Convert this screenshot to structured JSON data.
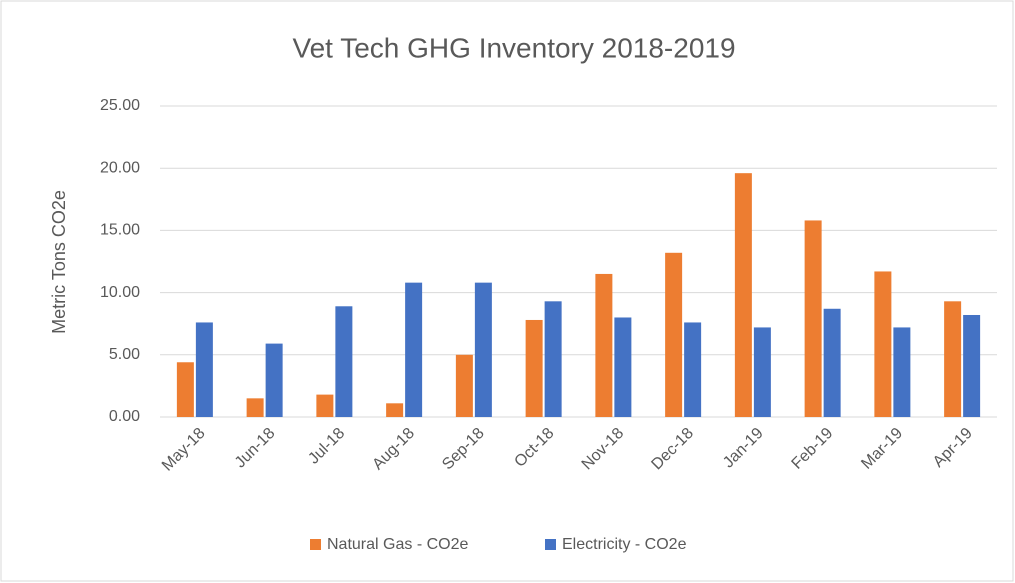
{
  "chart_data": {
    "type": "bar",
    "title": "Vet Tech GHG Inventory 2018-2019",
    "y_label": "Metric Tons CO2e",
    "categories": [
      "May-18",
      "Jun-18",
      "Jul-18",
      "Aug-18",
      "Sep-18",
      "Oct-18",
      "Nov-18",
      "Dec-18",
      "Jan-19",
      "Feb-19",
      "Mar-19",
      "Apr-19"
    ],
    "series": [
      {
        "name": "Natural Gas - CO2e",
        "color": "#ed7d31",
        "values": [
          4.4,
          1.5,
          1.8,
          1.1,
          5.0,
          7.8,
          11.5,
          13.2,
          19.6,
          15.8,
          11.7,
          9.3
        ]
      },
      {
        "name": "Electricity - CO2e",
        "color": "#4472c4",
        "values": [
          7.6,
          5.9,
          8.9,
          10.8,
          10.8,
          9.3,
          8.0,
          7.6,
          7.2,
          8.7,
          7.2,
          8.2
        ]
      }
    ],
    "ylim": [
      0,
      25
    ],
    "yticks": [
      {
        "value": 0,
        "label": "0.00"
      },
      {
        "value": 5,
        "label": "5.00"
      },
      {
        "value": 10,
        "label": "10.00"
      },
      {
        "value": 15,
        "label": "15.00"
      },
      {
        "value": 20,
        "label": "20.00"
      },
      {
        "value": 25,
        "label": "25.00"
      }
    ],
    "grid": true,
    "legend": "bottom"
  }
}
